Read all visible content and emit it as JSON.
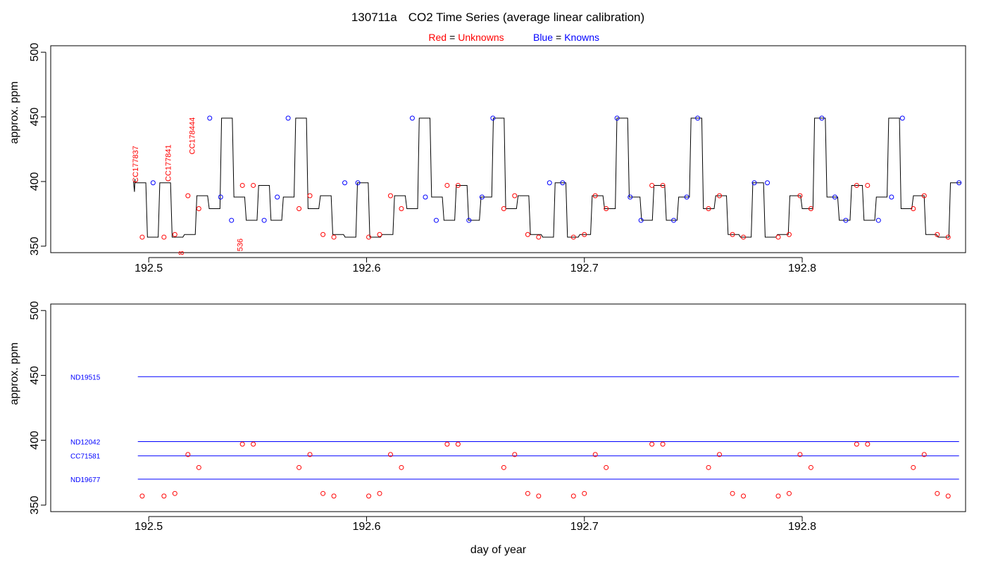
{
  "title": {
    "id": "130711a",
    "text": "CO2 Time Series (average linear calibration)"
  },
  "legend": {
    "unknowns": {
      "word": "Red",
      "eq": "=",
      "label": "Unknowns"
    },
    "knowns": {
      "word": "Blue",
      "eq": "=",
      "label": "Knowns"
    }
  },
  "colors": {
    "unknown": "#ff0000",
    "known": "#0000ff",
    "trace": "#000000",
    "frame": "#000000"
  },
  "chart_data": [
    {
      "type": "line",
      "name": "time-series",
      "ylabel": "approx. ppm",
      "xlim": [
        192.455,
        192.875
      ],
      "ylim": [
        345,
        505
      ],
      "xticks": [
        "192.5",
        "192.6",
        "192.7",
        "192.8"
      ],
      "yticks": [
        "350",
        "400",
        "450",
        "500"
      ],
      "trace_start": 192.493,
      "trace_end": 192.873,
      "level_values": {
        "U1": 357,
        "U2": 359,
        "U3": 389,
        "U4": 379,
        "U5": 397,
        "ND19515": 449,
        "ND12042": 399,
        "CC71581": 388,
        "ND19677": 370
      },
      "sequence": [
        "ND12042",
        "U1",
        "ND12042",
        "U1",
        "U2",
        "U3",
        "U4",
        "ND19515",
        "CC71581",
        "ND19677",
        "U5",
        "ND19677",
        "CC71581",
        "ND19515",
        "U4",
        "U3",
        "U2",
        "U1",
        "ND12042",
        "U1",
        "U2",
        "U3",
        "U4",
        "ND19515",
        "CC71581",
        "ND19677",
        "U5",
        "ND19677",
        "CC71581",
        "ND19515",
        "U4",
        "U3",
        "U2",
        "U1",
        "ND12042",
        "U1",
        "U2",
        "U3",
        "U4",
        "ND19515",
        "CC71581",
        "ND19677",
        "U5",
        "ND19677",
        "CC71581",
        "ND19515",
        "U4",
        "U3",
        "U2",
        "U1",
        "ND12042",
        "U1",
        "U2",
        "U3",
        "U4",
        "ND19515",
        "CC71581",
        "ND19677",
        "U5",
        "ND19677",
        "CC71581",
        "ND19515",
        "U4",
        "U3",
        "U2",
        "U1",
        "ND12042"
      ],
      "unknown_points": [
        {
          "x": 192.497,
          "y": 357
        },
        {
          "x": 192.507,
          "y": 357
        },
        {
          "x": 192.512,
          "y": 359
        },
        {
          "x": 192.518,
          "y": 389
        },
        {
          "x": 192.523,
          "y": 379
        },
        {
          "x": 192.543,
          "y": 397
        },
        {
          "x": 192.548,
          "y": 397
        },
        {
          "x": 192.569,
          "y": 379
        },
        {
          "x": 192.574,
          "y": 389
        },
        {
          "x": 192.58,
          "y": 359
        },
        {
          "x": 192.585,
          "y": 357
        },
        {
          "x": 192.601,
          "y": 357
        },
        {
          "x": 192.606,
          "y": 359
        },
        {
          "x": 192.611,
          "y": 389
        },
        {
          "x": 192.616,
          "y": 379
        },
        {
          "x": 192.637,
          "y": 397
        },
        {
          "x": 192.642,
          "y": 397
        },
        {
          "x": 192.663,
          "y": 379
        },
        {
          "x": 192.668,
          "y": 389
        },
        {
          "x": 192.674,
          "y": 359
        },
        {
          "x": 192.679,
          "y": 357
        },
        {
          "x": 192.695,
          "y": 357
        },
        {
          "x": 192.7,
          "y": 359
        },
        {
          "x": 192.705,
          "y": 389
        },
        {
          "x": 192.71,
          "y": 379
        },
        {
          "x": 192.731,
          "y": 397
        },
        {
          "x": 192.736,
          "y": 397
        },
        {
          "x": 192.757,
          "y": 379
        },
        {
          "x": 192.762,
          "y": 389
        },
        {
          "x": 192.768,
          "y": 359
        },
        {
          "x": 192.773,
          "y": 357
        },
        {
          "x": 192.789,
          "y": 357
        },
        {
          "x": 192.794,
          "y": 359
        },
        {
          "x": 192.799,
          "y": 389
        },
        {
          "x": 192.804,
          "y": 379
        },
        {
          "x": 192.825,
          "y": 397
        },
        {
          "x": 192.83,
          "y": 397
        },
        {
          "x": 192.851,
          "y": 379
        },
        {
          "x": 192.856,
          "y": 389
        },
        {
          "x": 192.862,
          "y": 359
        },
        {
          "x": 192.867,
          "y": 357
        }
      ],
      "known_points": [
        {
          "x": 192.502,
          "y": 399
        },
        {
          "x": 192.528,
          "y": 449
        },
        {
          "x": 192.533,
          "y": 388
        },
        {
          "x": 192.538,
          "y": 370
        },
        {
          "x": 192.553,
          "y": 370
        },
        {
          "x": 192.559,
          "y": 388
        },
        {
          "x": 192.564,
          "y": 449
        },
        {
          "x": 192.59,
          "y": 399
        },
        {
          "x": 192.596,
          "y": 399
        },
        {
          "x": 192.621,
          "y": 449
        },
        {
          "x": 192.627,
          "y": 388
        },
        {
          "x": 192.632,
          "y": 370
        },
        {
          "x": 192.647,
          "y": 370
        },
        {
          "x": 192.653,
          "y": 388
        },
        {
          "x": 192.658,
          "y": 449
        },
        {
          "x": 192.684,
          "y": 399
        },
        {
          "x": 192.69,
          "y": 399
        },
        {
          "x": 192.715,
          "y": 449
        },
        {
          "x": 192.721,
          "y": 388
        },
        {
          "x": 192.726,
          "y": 370
        },
        {
          "x": 192.741,
          "y": 370
        },
        {
          "x": 192.747,
          "y": 388
        },
        {
          "x": 192.752,
          "y": 449
        },
        {
          "x": 192.778,
          "y": 399
        },
        {
          "x": 192.784,
          "y": 399
        },
        {
          "x": 192.809,
          "y": 449
        },
        {
          "x": 192.815,
          "y": 388
        },
        {
          "x": 192.82,
          "y": 370
        },
        {
          "x": 192.835,
          "y": 370
        },
        {
          "x": 192.841,
          "y": 388
        },
        {
          "x": 192.846,
          "y": 449
        },
        {
          "x": 192.872,
          "y": 399
        }
      ],
      "annotations": [
        {
          "text": "CC177837",
          "x": 192.497,
          "y": 399
        },
        {
          "text": "CC177841",
          "x": 192.512,
          "y": 400
        },
        {
          "text": "CC178444",
          "x": 192.523,
          "y": 421
        },
        {
          "text": "536",
          "x": 192.545,
          "y": 346
        },
        {
          "text": "8",
          "x": 192.518,
          "y": 343
        }
      ]
    },
    {
      "type": "scatter",
      "name": "calibration",
      "xlabel": "day of year",
      "ylabel": "approx. ppm",
      "xlim": [
        192.455,
        192.875
      ],
      "ylim": [
        345,
        505
      ],
      "xticks": [
        "192.5",
        "192.6",
        "192.7",
        "192.8"
      ],
      "yticks": [
        "350",
        "400",
        "450",
        "500"
      ],
      "reference_lines": [
        {
          "label": "ND19515",
          "y": 449,
          "x_start": 192.495,
          "x_end": 192.872
        },
        {
          "label": "ND12042",
          "y": 399,
          "x_start": 192.495,
          "x_end": 192.872
        },
        {
          "label": "CC71581",
          "y": 388,
          "x_start": 192.495,
          "x_end": 192.872
        },
        {
          "label": "ND19677",
          "y": 370,
          "x_start": 192.495,
          "x_end": 192.872
        }
      ]
    }
  ]
}
